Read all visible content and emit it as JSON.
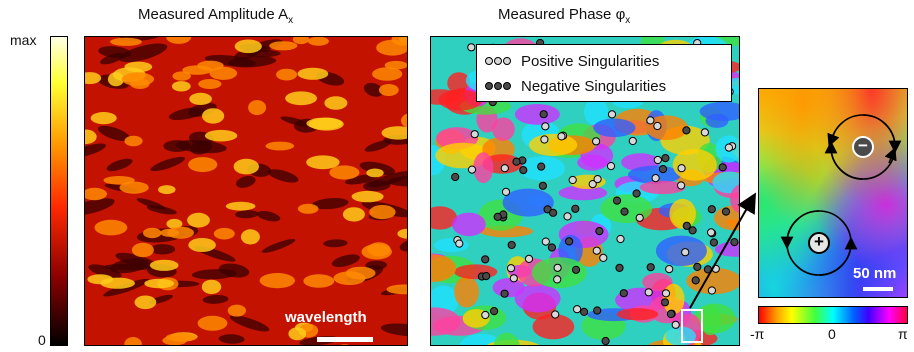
{
  "titles": {
    "amplitude": "Measured Amplitude A",
    "amplitude_sub": "x",
    "phase": "Measured Phase φ",
    "phase_sub": "x"
  },
  "amplitude_colorbar": {
    "max_label": "max",
    "min_label": "0",
    "colors": [
      "#000000",
      "#8b0000",
      "#ff2a00",
      "#ff9900",
      "#ffff33",
      "#ffffe6"
    ]
  },
  "amplitude_scalebar": {
    "label": "wavelength"
  },
  "legend": {
    "positive": "Positive Singularities",
    "negative": "Negative Singularities"
  },
  "inset": {
    "scalebar_label": "50 nm",
    "positive_symbol": "+",
    "negative_symbol": "−"
  },
  "phase_colorbar": {
    "min_label": "-π",
    "mid_label": "0",
    "max_label": "π"
  },
  "colors": {
    "pos_marker": "#d8d8d8",
    "neg_marker": "#4a4a4a",
    "frame": "#000000"
  }
}
